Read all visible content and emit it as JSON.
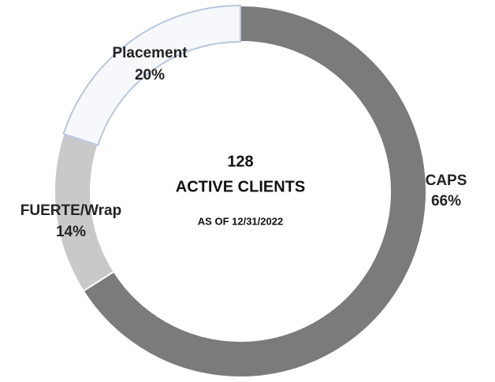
{
  "chart_data": {
    "type": "donut",
    "categories": [
      "CAPS",
      "FUERTE/Wrap",
      "Placement"
    ],
    "values": [
      66,
      14,
      20
    ],
    "value_labels": [
      "66%",
      "14%",
      "20%"
    ],
    "colors": [
      "#7b7b7b",
      "#c9c9c9",
      "#f6f8fc"
    ],
    "center_text": [
      "128",
      "ACTIVE CLIENTS",
      "AS OF 12/31/2022"
    ]
  }
}
